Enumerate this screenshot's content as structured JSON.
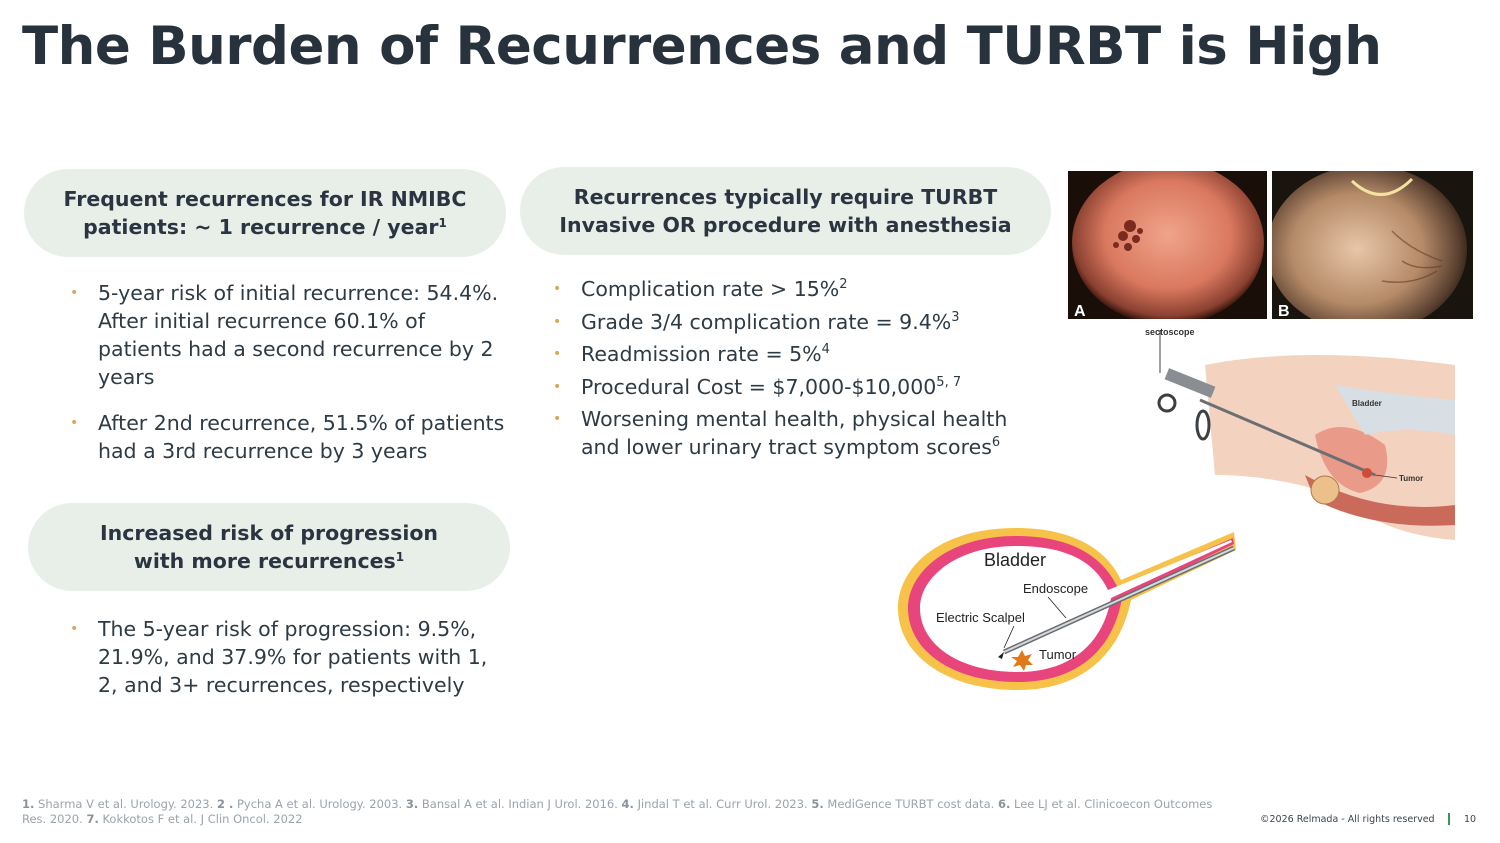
{
  "title": "The Burden of Recurrences and TURBT is High",
  "left_top": {
    "heading_line1": "Frequent recurrences for IR NMIBC",
    "heading_line2": "patients: ~ 1 recurrence / year",
    "heading_sup": "1",
    "bullet1": "5-year risk of initial recurrence: 54.4%. After initial recurrence 60.1% of patients had a second recurrence by 2 years",
    "bullet2": "After 2nd recurrence, 51.5% of patients had a 3rd recurrence by 3 years"
  },
  "left_bottom": {
    "heading_line1": "Increased risk of progression",
    "heading_line2": "with more recurrences",
    "heading_sup": "1",
    "bullet1": "The 5-year risk of progression: 9.5%, 21.9%, and 37.9% for patients with 1, 2, and 3+ recurrences, respectively"
  },
  "middle": {
    "heading_line1": "Recurrences typically require TURBT",
    "heading_line2": "Invasive OR procedure with anesthesia",
    "bullets": [
      {
        "text": "Complication rate > 15%",
        "sup": "2"
      },
      {
        "text": "Grade 3/4 complication rate = 9.4%",
        "sup": "3"
      },
      {
        "text": "Readmission rate = 5%",
        "sup": "4"
      },
      {
        "text": "Procedural Cost = $7,000-$10,000",
        "sup": "5, 7"
      },
      {
        "text": "Worsening mental health, physical health and lower urinary tract symptom scores",
        "sup": "6"
      }
    ]
  },
  "images": {
    "photo_a_label": "A",
    "photo_b_label": "B",
    "anatomy_labels": {
      "scope": "sectoscope",
      "bladder": "Bladder",
      "tumor": "Tumor"
    },
    "diagram_labels": {
      "bladder": "Bladder",
      "endoscope": "Endoscope",
      "scalpel": "Electric Scalpel",
      "tumor": "Tumor"
    }
  },
  "footnotes": [
    {
      "num": "1.",
      "text": " Sharma V et al. Urology. 2023. "
    },
    {
      "num": "2 .",
      "text": " Pycha A et al. Urology. 2003. "
    },
    {
      "num": "3.",
      "text": " Bansal A et al. Indian J Urol. 2016. "
    },
    {
      "num": "4.",
      "text": " Jindal T et al. Curr Urol. 2023. "
    },
    {
      "num": "5.",
      "text": " MediGence TURBT cost data. "
    },
    {
      "num": "6.",
      "text": " Lee LJ et al. Clinicoecon Outcomes Res. 2020. "
    },
    {
      "num": "7.",
      "text": " Kokkotos F et al. J Clin Oncol. 2022"
    }
  ],
  "copyright": "©2026 Relmada - All rights reserved",
  "page_number": "10",
  "colors": {
    "pill_bg": "#e8efe9",
    "bullet": "#d9a65a",
    "accent_bar": "#2f9a50",
    "bladder_pink": "#e8457c",
    "bladder_yellow": "#f6c24a"
  }
}
